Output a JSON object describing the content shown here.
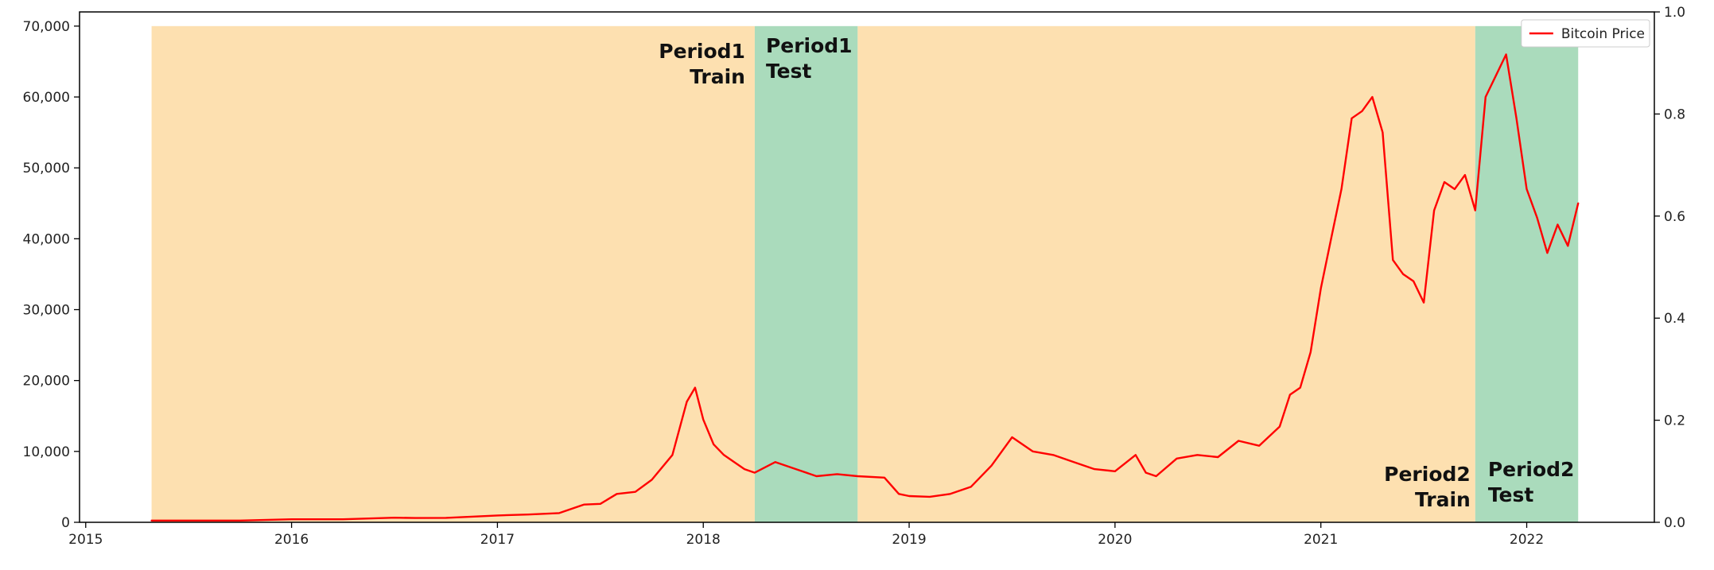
{
  "chart_data": {
    "type": "line",
    "title": "",
    "xlabel": "",
    "ylabel": "",
    "x_ticks": [
      "2015",
      "2016",
      "2017",
      "2018",
      "2019",
      "2020",
      "2021",
      "2022"
    ],
    "y_ticks": [
      "0",
      "10,000",
      "20,000",
      "30,000",
      "40,000",
      "50,000",
      "60,000",
      "70,000"
    ],
    "y2_ticks": [
      "0.0",
      "0.2",
      "0.4",
      "0.6",
      "0.8",
      "1.0"
    ],
    "xlim": [
      2014.97,
      2022.62
    ],
    "ylim": [
      0,
      72000
    ],
    "y2lim": [
      0,
      1.0
    ],
    "grid": false,
    "legend_position": "top-right",
    "colors": {
      "line": "#ff0000",
      "train": "#fde0b0",
      "test": "#aadbbc"
    },
    "regions": [
      {
        "kind": "train",
        "start": 2015.32,
        "end": 2018.25,
        "top": 70000,
        "label": [
          "Period1",
          "Train"
        ],
        "label_anchor": "top-right-outside"
      },
      {
        "kind": "test",
        "start": 2018.25,
        "end": 2018.75,
        "top": 70000,
        "label": [
          "Period1",
          "Test"
        ],
        "label_anchor": "top-left"
      },
      {
        "kind": "train",
        "start": 2018.75,
        "end": 2021.75,
        "top": 70000,
        "label": [
          "Period2",
          "Train"
        ],
        "label_anchor": "bottom-right-outside"
      },
      {
        "kind": "test",
        "start": 2021.75,
        "end": 2022.25,
        "top": 70000,
        "label": [
          "Period2",
          "Test"
        ],
        "label_anchor": "bottom-left"
      }
    ],
    "series": [
      {
        "name": "Bitcoin Price",
        "x": [
          2015.32,
          2015.5,
          2015.75,
          2016.0,
          2016.25,
          2016.5,
          2016.6,
          2016.75,
          2017.0,
          2017.15,
          2017.3,
          2017.42,
          2017.5,
          2017.58,
          2017.67,
          2017.75,
          2017.85,
          2017.92,
          2017.96,
          2018.0,
          2018.05,
          2018.1,
          2018.15,
          2018.2,
          2018.25,
          2018.35,
          2018.45,
          2018.55,
          2018.65,
          2018.75,
          2018.88,
          2018.95,
          2019.0,
          2019.1,
          2019.2,
          2019.3,
          2019.4,
          2019.5,
          2019.6,
          2019.7,
          2019.8,
          2019.9,
          2020.0,
          2020.1,
          2020.15,
          2020.2,
          2020.3,
          2020.4,
          2020.5,
          2020.6,
          2020.7,
          2020.8,
          2020.85,
          2020.9,
          2020.95,
          2021.0,
          2021.05,
          2021.1,
          2021.15,
          2021.2,
          2021.25,
          2021.3,
          2021.35,
          2021.4,
          2021.45,
          2021.5,
          2021.55,
          2021.6,
          2021.65,
          2021.7,
          2021.75,
          2021.8,
          2021.85,
          2021.9,
          2021.95,
          2022.0,
          2022.05,
          2022.1,
          2022.15,
          2022.2,
          2022.25
        ],
        "y": [
          250,
          250,
          250,
          430,
          430,
          650,
          600,
          630,
          970,
          1100,
          1300,
          2500,
          2600,
          4000,
          4300,
          6000,
          9500,
          17000,
          19000,
          14500,
          11000,
          9500,
          8500,
          7500,
          7000,
          8500,
          7500,
          6500,
          6800,
          6500,
          6300,
          4000,
          3700,
          3600,
          4000,
          5000,
          8000,
          12000,
          10000,
          9500,
          8500,
          7500,
          7200,
          9500,
          7000,
          6500,
          9000,
          9500,
          9200,
          11500,
          10800,
          13500,
          18000,
          19000,
          24000,
          33000,
          40000,
          47000,
          57000,
          58000,
          60000,
          55000,
          37000,
          35000,
          34000,
          31000,
          44000,
          48000,
          47000,
          49000,
          44000,
          60000,
          63000,
          66000,
          57000,
          47000,
          43000,
          38000,
          42000,
          39000,
          45000
        ]
      }
    ]
  },
  "legend": {
    "label": "Bitcoin Price"
  }
}
